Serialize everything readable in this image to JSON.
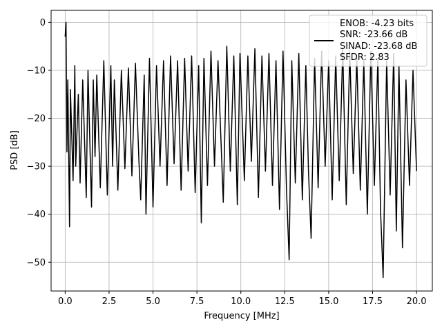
{
  "chart_data": {
    "type": "line",
    "xlabel": "Frequency [MHz]",
    "ylabel": "PSD [dB]",
    "xlim": [
      -0.8,
      20.9
    ],
    "ylim": [
      -56,
      2.5
    ],
    "xticks": [
      0.0,
      2.5,
      5.0,
      7.5,
      10.0,
      12.5,
      15.0,
      17.5,
      20.0
    ],
    "xtick_labels": [
      "0.0",
      "2.5",
      "5.0",
      "7.5",
      "10.0",
      "12.5",
      "15.0",
      "17.5",
      "20.0"
    ],
    "yticks": [
      0,
      -10,
      -20,
      -30,
      -40,
      -50
    ],
    "ytick_labels": [
      "0",
      "−10",
      "−20",
      "−30",
      "−40",
      "−50"
    ],
    "grid": true,
    "line_color": "#000000",
    "legend": {
      "placement": "top-right",
      "entries": [
        "ENOB: -4.23 bits",
        "SNR: -23.66 dB",
        "SINAD: -23.68 dB",
        "SFDR: 2.83"
      ]
    },
    "series": [
      {
        "x": [
          0.0,
          0.05,
          0.1,
          0.15,
          0.25,
          0.3,
          0.45,
          0.55,
          0.6,
          0.75,
          0.85,
          1.0,
          1.2,
          1.3,
          1.5,
          1.6,
          1.7,
          1.8,
          2.0,
          2.2,
          2.4,
          2.6,
          2.7,
          2.8,
          3.0,
          3.2,
          3.4,
          3.6,
          3.8,
          4.0,
          4.2,
          4.3,
          4.5,
          4.6,
          4.8,
          5.0,
          5.2,
          5.4,
          5.6,
          5.8,
          6.0,
          6.2,
          6.4,
          6.6,
          6.8,
          7.0,
          7.2,
          7.4,
          7.6,
          7.75,
          7.9,
          8.1,
          8.3,
          8.5,
          8.7,
          9.0,
          9.2,
          9.4,
          9.6,
          9.8,
          9.95,
          10.2,
          10.4,
          10.6,
          10.8,
          11.0,
          11.2,
          11.4,
          11.6,
          11.8,
          12.0,
          12.2,
          12.4,
          12.6,
          12.75,
          12.9,
          13.1,
          13.3,
          13.5,
          13.7,
          13.85,
          14.0,
          14.2,
          14.4,
          14.6,
          14.8,
          15.0,
          15.2,
          15.4,
          15.6,
          15.8,
          16.0,
          16.2,
          16.4,
          16.6,
          16.8,
          17.0,
          17.2,
          17.4,
          17.6,
          17.8,
          17.95,
          18.1,
          18.3,
          18.5,
          18.7,
          18.85,
          19.0,
          19.2,
          19.4,
          19.6,
          19.8,
          20.0
        ],
        "values": [
          -3.0,
          0.0,
          -27.0,
          -12.0,
          -42.6,
          -14.0,
          -33.0,
          -9.0,
          -30.0,
          -15.0,
          -33.5,
          -12.0,
          -36.5,
          -10.0,
          -38.5,
          -12.0,
          -28.0,
          -11.0,
          -34.5,
          -8.0,
          -36.0,
          -9.0,
          -30.0,
          -12.0,
          -35.0,
          -10.0,
          -30.5,
          -9.5,
          -32.0,
          -8.5,
          -29.0,
          -37.0,
          -11.0,
          -40.0,
          -7.5,
          -38.5,
          -9.0,
          -30.0,
          -8.0,
          -34.0,
          -7.0,
          -29.5,
          -8.0,
          -35.0,
          -7.5,
          -31.0,
          -7.0,
          -35.5,
          -9.0,
          -41.8,
          -7.5,
          -34.0,
          -6.0,
          -30.0,
          -8.0,
          -37.5,
          -5.0,
          -31.0,
          -7.0,
          -38.0,
          -6.5,
          -33.0,
          -7.0,
          -29.0,
          -5.5,
          -36.5,
          -7.0,
          -31.0,
          -6.5,
          -34.0,
          -8.0,
          -39.0,
          -6.0,
          -35.0,
          -49.5,
          -8.0,
          -33.5,
          -6.5,
          -37.0,
          -9.0,
          -31.0,
          -45.0,
          -7.5,
          -34.5,
          -6.0,
          -30.0,
          -8.0,
          -37.0,
          -7.0,
          -33.0,
          -5.5,
          -38.0,
          -6.0,
          -31.5,
          -7.5,
          -35.0,
          -8.0,
          -40.0,
          -6.0,
          -34.0,
          -7.5,
          -39.0,
          -53.2,
          -8.0,
          -36.0,
          -6.5,
          -43.5,
          -9.0,
          -47.0,
          -12.0,
          -34.0,
          -10.0,
          -31.0
        ]
      }
    ]
  }
}
